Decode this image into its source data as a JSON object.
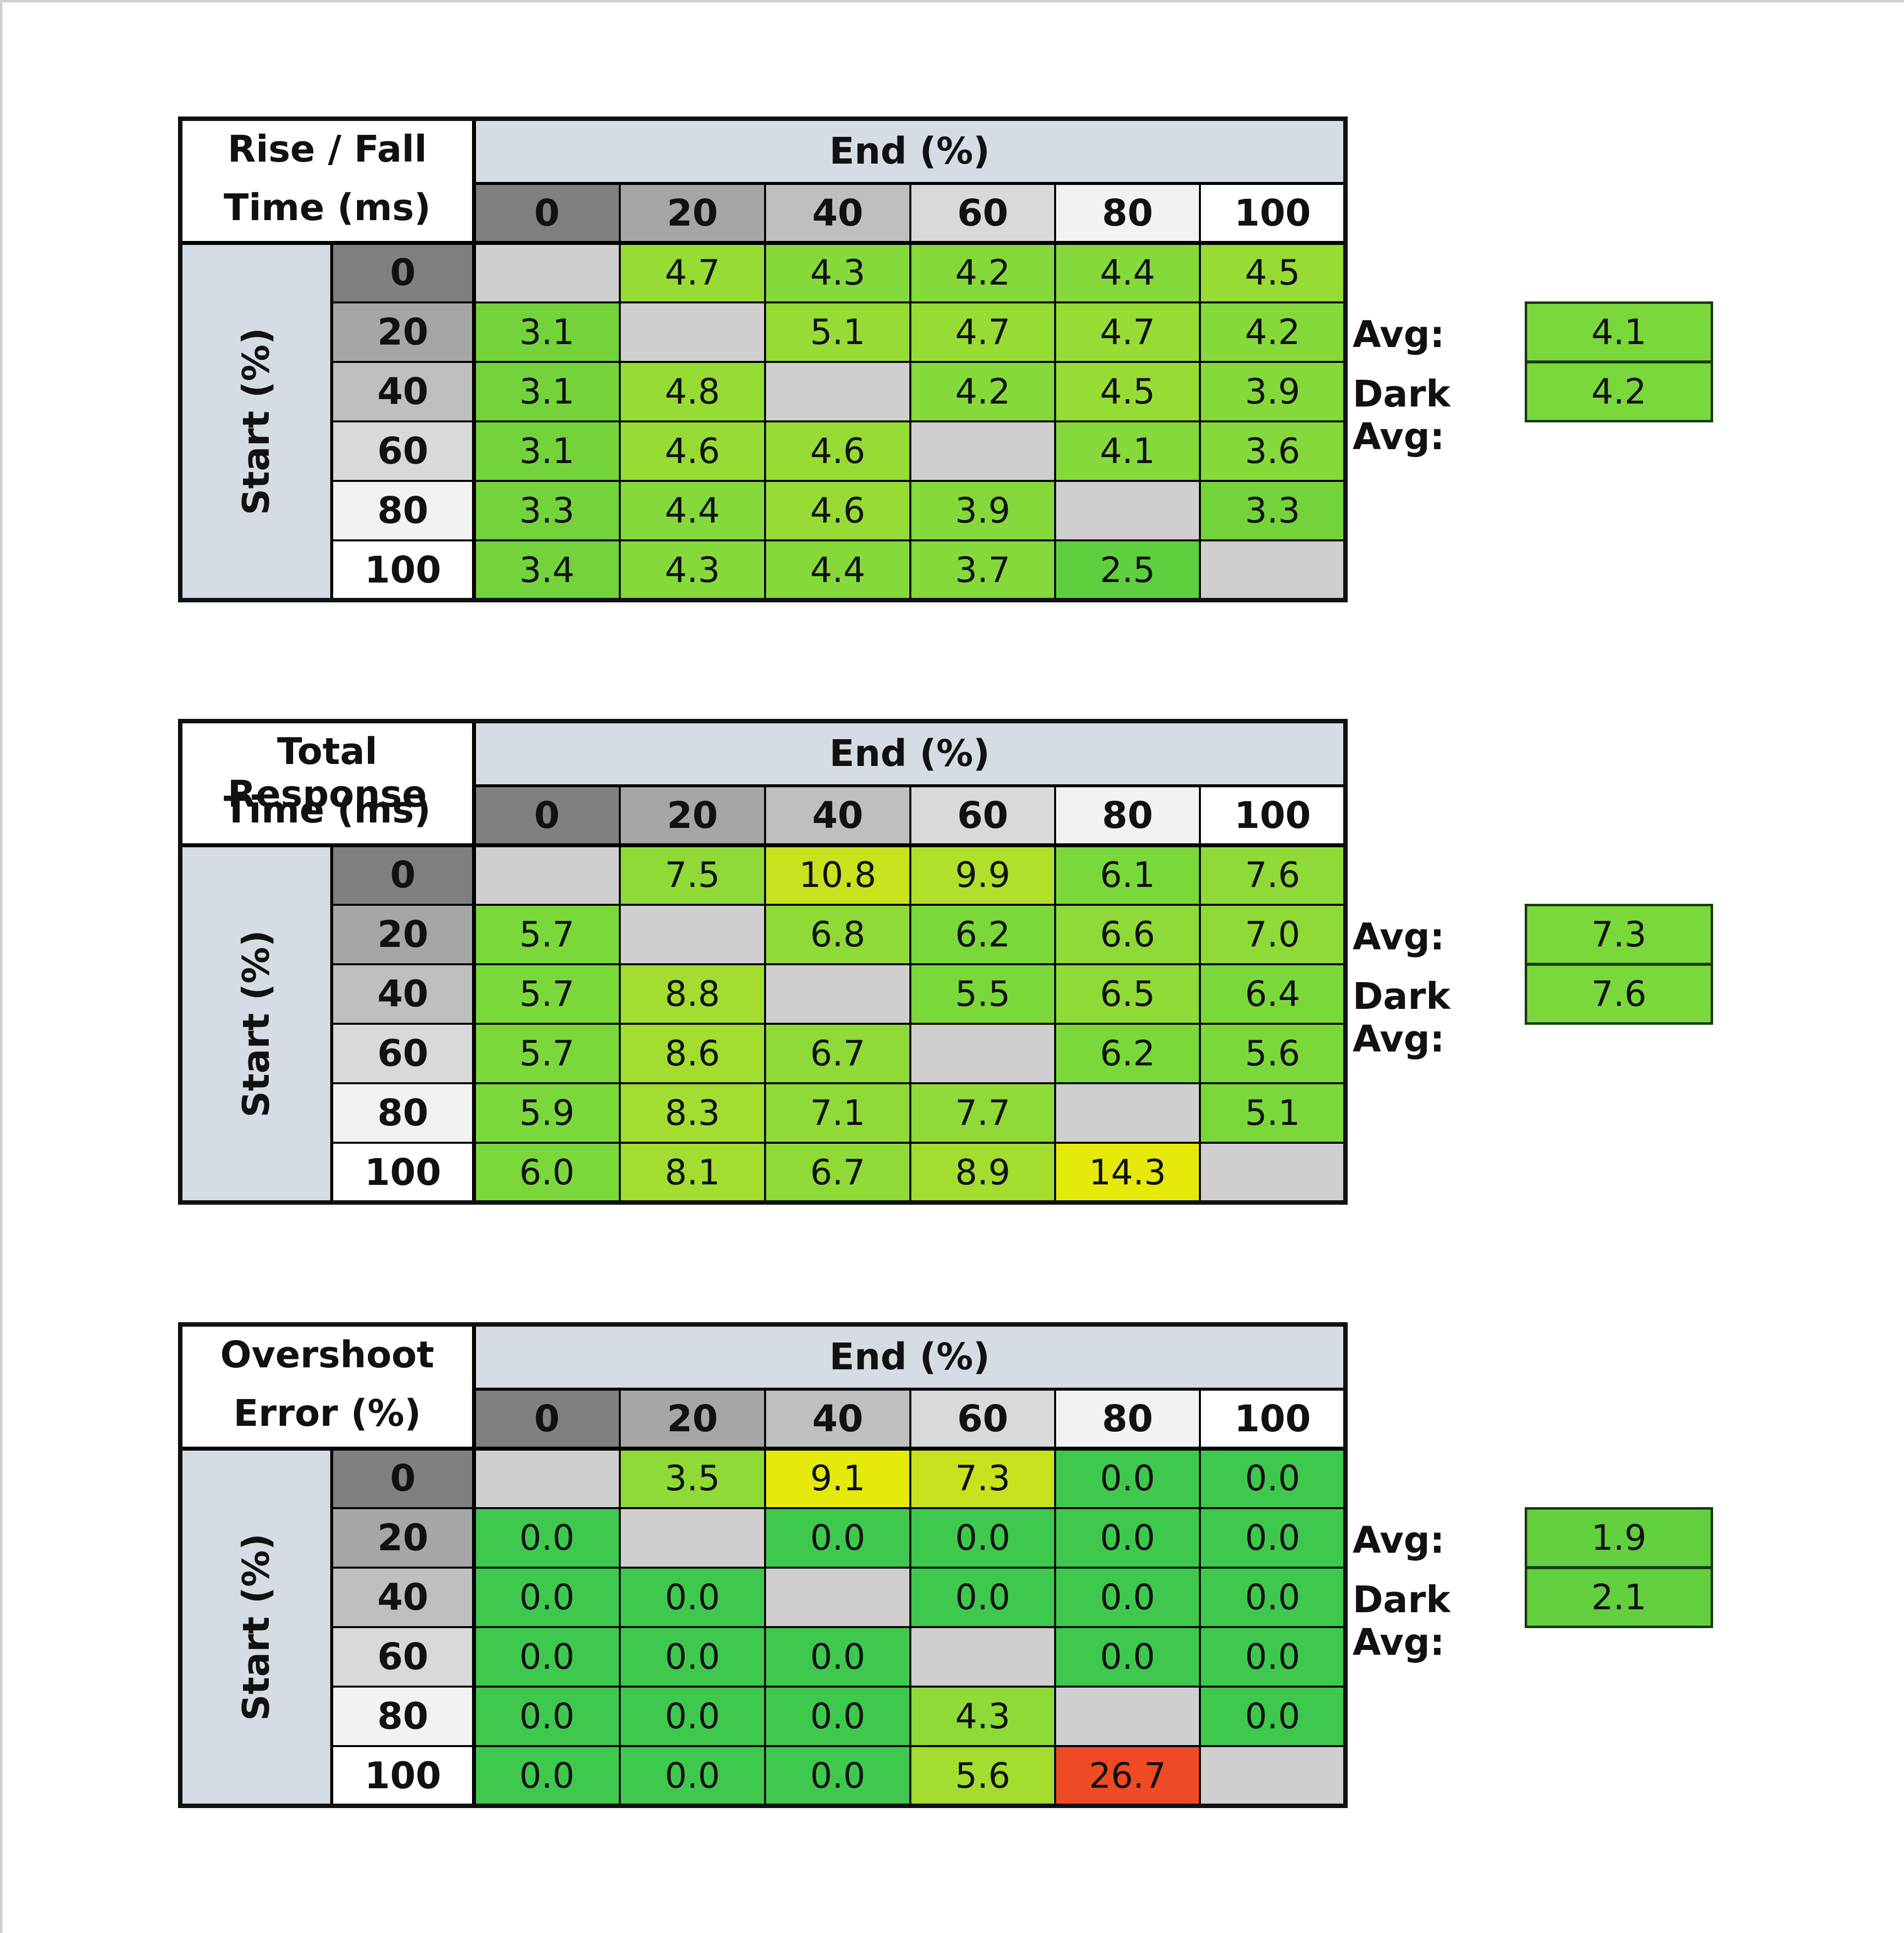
{
  "tables": [
    {
      "title_lines": [
        "Rise / Fall",
        "Time (ms)"
      ],
      "end_label": "End (%)",
      "start_label": "Start (%)",
      "col_headers": [
        "0",
        "20",
        "40",
        "60",
        "80",
        "100"
      ],
      "row_headers": [
        "0",
        "20",
        "40",
        "60",
        "80",
        "100"
      ],
      "rows": [
        [
          "",
          "4.7",
          "4.3",
          "4.2",
          "4.4",
          "4.5"
        ],
        [
          "3.1",
          "",
          "5.1",
          "4.7",
          "4.7",
          "4.2"
        ],
        [
          "3.1",
          "4.8",
          "",
          "4.2",
          "4.5",
          "3.9"
        ],
        [
          "3.1",
          "4.6",
          "4.6",
          "",
          "4.1",
          "3.6"
        ],
        [
          "3.3",
          "4.4",
          "4.6",
          "3.9",
          "",
          "3.3"
        ],
        [
          "3.4",
          "4.3",
          "4.4",
          "3.7",
          "2.5",
          ""
        ]
      ],
      "avg_label": "Avg:",
      "avg_value": "4.1",
      "dark_avg_label": "Dark Avg:",
      "dark_avg_value": "4.2"
    },
    {
      "title_lines": [
        "Total Response",
        "Time (ms)"
      ],
      "end_label": "End (%)",
      "start_label": "Start (%)",
      "col_headers": [
        "0",
        "20",
        "40",
        "60",
        "80",
        "100"
      ],
      "row_headers": [
        "0",
        "20",
        "40",
        "60",
        "80",
        "100"
      ],
      "rows": [
        [
          "",
          "7.5",
          "10.8",
          "9.9",
          "6.1",
          "7.6"
        ],
        [
          "5.7",
          "",
          "6.8",
          "6.2",
          "6.6",
          "7.0"
        ],
        [
          "5.7",
          "8.8",
          "",
          "5.5",
          "6.5",
          "6.4"
        ],
        [
          "5.7",
          "8.6",
          "6.7",
          "",
          "6.2",
          "5.6"
        ],
        [
          "5.9",
          "8.3",
          "7.1",
          "7.7",
          "",
          "5.1"
        ],
        [
          "6.0",
          "8.1",
          "6.7",
          "8.9",
          "14.3",
          ""
        ]
      ],
      "avg_label": "Avg:",
      "avg_value": "7.3",
      "dark_avg_label": "Dark Avg:",
      "dark_avg_value": "7.6"
    },
    {
      "title_lines": [
        "Overshoot",
        "Error (%)"
      ],
      "end_label": "End (%)",
      "start_label": "Start (%)",
      "col_headers": [
        "0",
        "20",
        "40",
        "60",
        "80",
        "100"
      ],
      "row_headers": [
        "0",
        "20",
        "40",
        "60",
        "80",
        "100"
      ],
      "rows": [
        [
          "",
          "3.5",
          "9.1",
          "7.3",
          "0.0",
          "0.0"
        ],
        [
          "0.0",
          "",
          "0.0",
          "0.0",
          "0.0",
          "0.0"
        ],
        [
          "0.0",
          "0.0",
          "",
          "0.0",
          "0.0",
          "0.0"
        ],
        [
          "0.0",
          "0.0",
          "0.0",
          "",
          "0.0",
          "0.0"
        ],
        [
          "0.0",
          "0.0",
          "0.0",
          "4.3",
          "",
          "0.0"
        ],
        [
          "0.0",
          "0.0",
          "0.0",
          "5.6",
          "26.7",
          ""
        ]
      ],
      "avg_label": "Avg:",
      "avg_value": "1.9",
      "dark_avg_label": "Dark Avg:",
      "dark_avg_value": "2.1"
    }
  ],
  "colors": {
    "header_gray_shades": [
      "#808080",
      "#a6a6a6",
      "#bfbfbf",
      "#d9d9d9",
      "#f2f2f2",
      "#ffffff"
    ],
    "end_header_bg": "#d6dce4",
    "start_label_bg": "#d6dce4",
    "diagonal_empty": "#d0cece",
    "green": "#3ec94e",
    "light_green": "#86d93a",
    "lime": "#b0e02a",
    "yellow": "#e6ea0a",
    "red": "#ee4a25"
  },
  "chart_data": [
    {
      "type": "heatmap",
      "title": "Rise / Fall Time (ms)",
      "xlabel": "End (%)",
      "ylabel": "Start (%)",
      "x": [
        0,
        20,
        40,
        60,
        80,
        100
      ],
      "y": [
        0,
        20,
        40,
        60,
        80,
        100
      ],
      "values": [
        [
          null,
          4.7,
          4.3,
          4.2,
          4.4,
          4.5
        ],
        [
          3.1,
          null,
          5.1,
          4.7,
          4.7,
          4.2
        ],
        [
          3.1,
          4.8,
          null,
          4.2,
          4.5,
          3.9
        ],
        [
          3.1,
          4.6,
          4.6,
          null,
          4.1,
          3.6
        ],
        [
          3.3,
          4.4,
          4.6,
          3.9,
          null,
          3.3
        ],
        [
          3.4,
          4.3,
          4.4,
          3.7,
          2.5,
          null
        ]
      ],
      "avg": 4.1,
      "dark_avg": 4.2
    },
    {
      "type": "heatmap",
      "title": "Total Response Time (ms)",
      "xlabel": "End (%)",
      "ylabel": "Start (%)",
      "x": [
        0,
        20,
        40,
        60,
        80,
        100
      ],
      "y": [
        0,
        20,
        40,
        60,
        80,
        100
      ],
      "values": [
        [
          null,
          7.5,
          10.8,
          9.9,
          6.1,
          7.6
        ],
        [
          5.7,
          null,
          6.8,
          6.2,
          6.6,
          7.0
        ],
        [
          5.7,
          8.8,
          null,
          5.5,
          6.5,
          6.4
        ],
        [
          5.7,
          8.6,
          6.7,
          null,
          6.2,
          5.6
        ],
        [
          5.9,
          8.3,
          7.1,
          7.7,
          null,
          5.1
        ],
        [
          6.0,
          8.1,
          6.7,
          8.9,
          14.3,
          null
        ]
      ],
      "avg": 7.3,
      "dark_avg": 7.6
    },
    {
      "type": "heatmap",
      "title": "Overshoot Error (%)",
      "xlabel": "End (%)",
      "ylabel": "Start (%)",
      "x": [
        0,
        20,
        40,
        60,
        80,
        100
      ],
      "y": [
        0,
        20,
        40,
        60,
        80,
        100
      ],
      "values": [
        [
          null,
          3.5,
          9.1,
          7.3,
          0.0,
          0.0
        ],
        [
          0.0,
          null,
          0.0,
          0.0,
          0.0,
          0.0
        ],
        [
          0.0,
          0.0,
          null,
          0.0,
          0.0,
          0.0
        ],
        [
          0.0,
          0.0,
          0.0,
          null,
          0.0,
          0.0
        ],
        [
          0.0,
          0.0,
          0.0,
          4.3,
          null,
          0.0
        ],
        [
          0.0,
          0.0,
          0.0,
          5.6,
          26.7,
          null
        ]
      ],
      "avg": 1.9,
      "dark_avg": 2.1
    }
  ]
}
